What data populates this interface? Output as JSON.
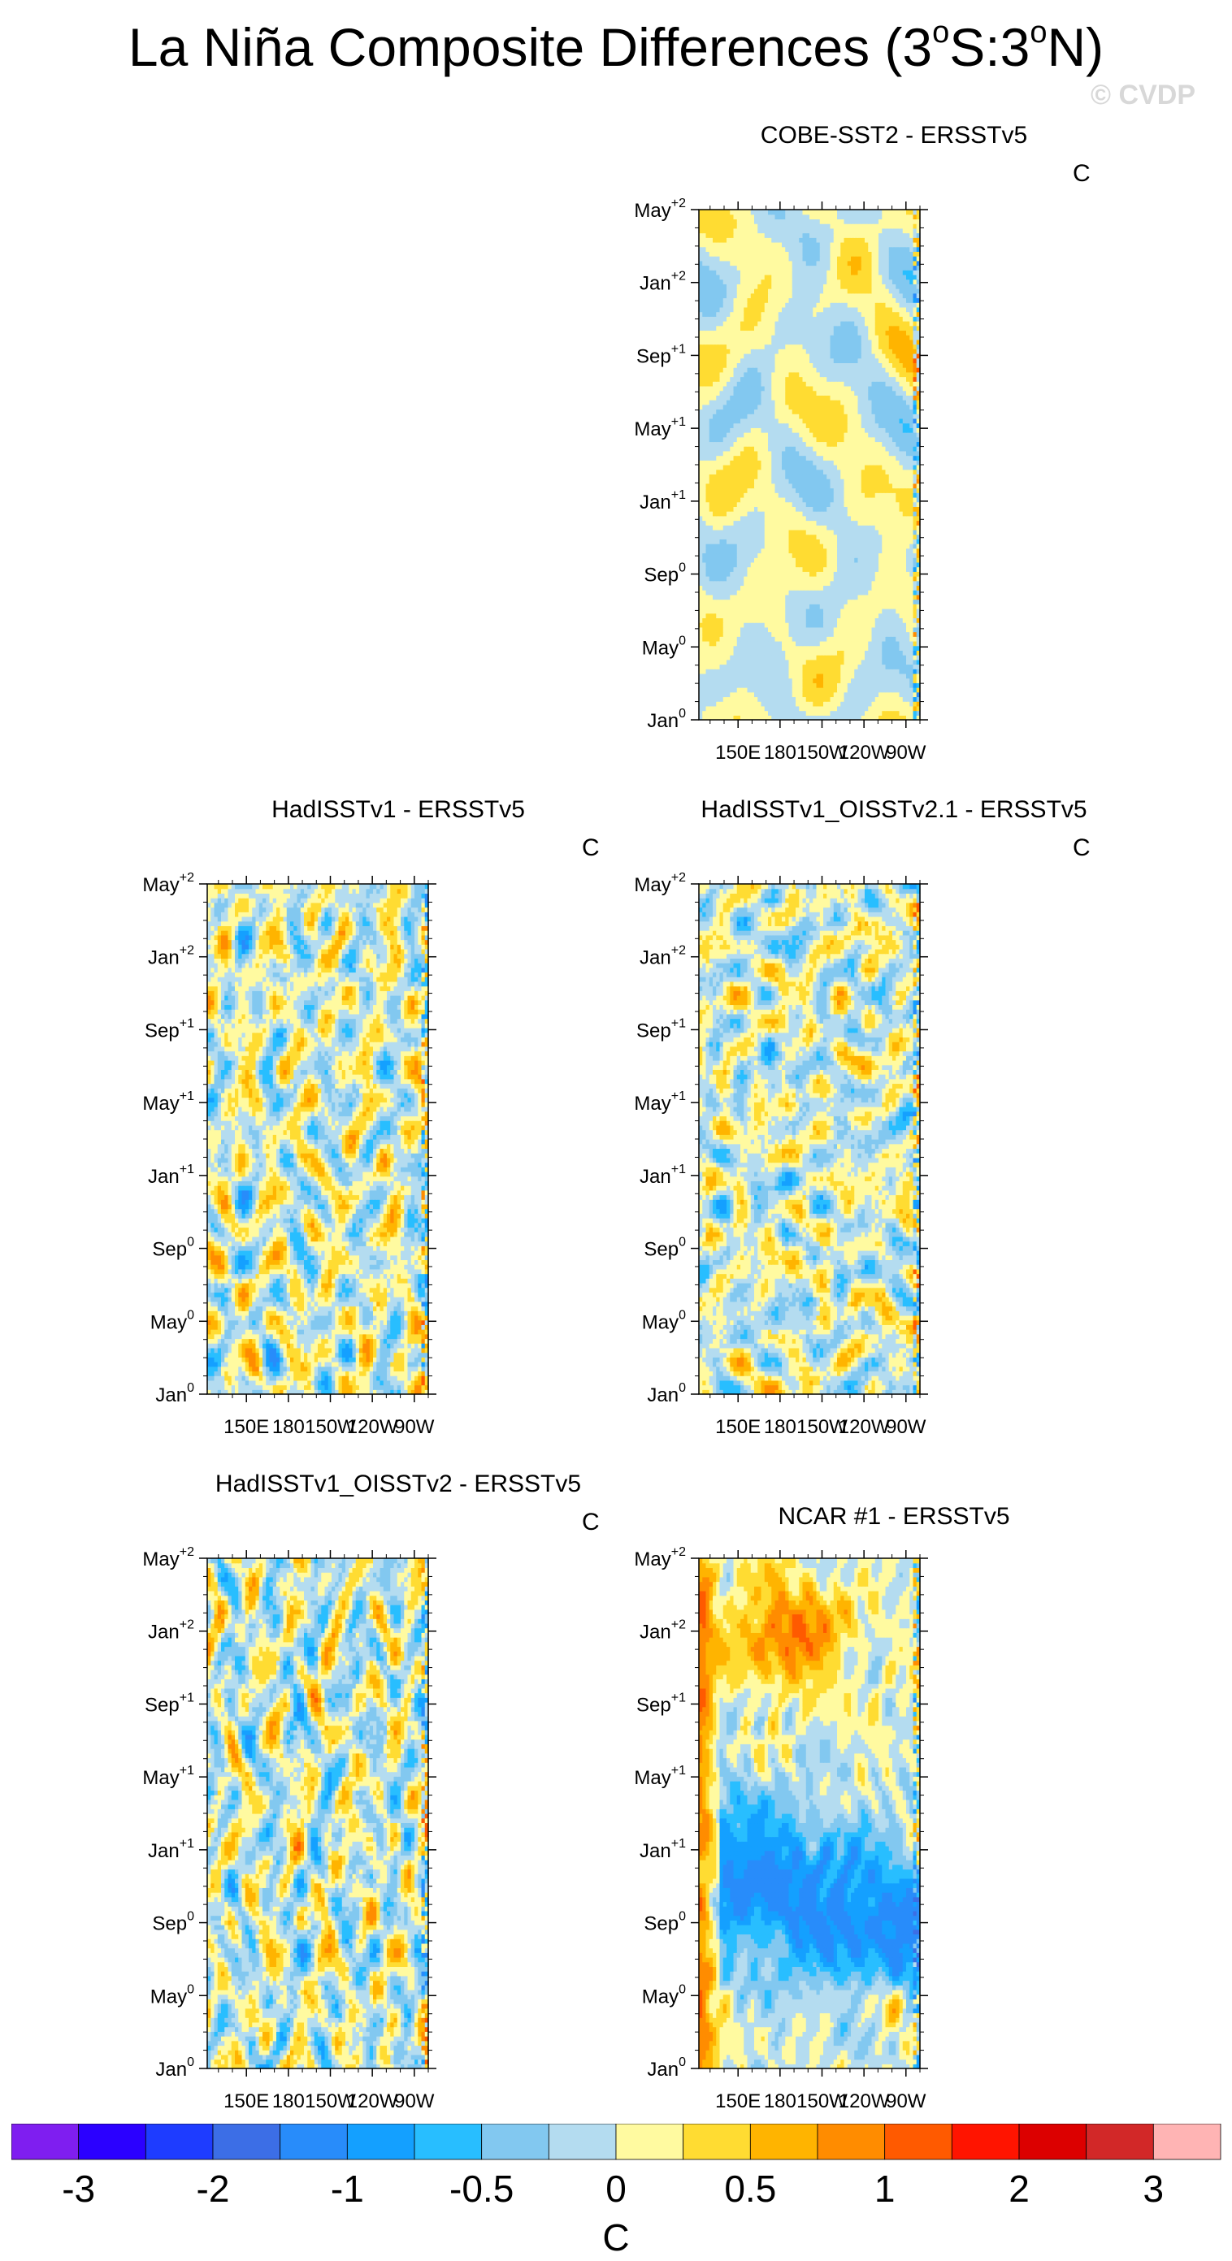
{
  "title": {
    "main": "La Niña Composite Differences (3",
    "s1": "o",
    "mid": "S:3",
    "s2": "o",
    "end": "N)"
  },
  "watermark": "© CVDP",
  "chart_data": [
    {
      "type": "heatmap",
      "title": "COBE-SST2 - ERSSTv5",
      "units": "C",
      "x_ticks": [
        "150E",
        "180",
        "150W",
        "120W",
        "90W"
      ],
      "y_ticks": [
        [
          "Jan",
          "0"
        ],
        [
          "May",
          "0"
        ],
        [
          "Sep",
          "0"
        ],
        [
          "Jan",
          "+1"
        ],
        [
          "May",
          "+1"
        ],
        [
          "Sep",
          "+1"
        ],
        [
          "Jan",
          "+2"
        ],
        [
          "May",
          "+2"
        ]
      ],
      "seed": 11,
      "bias": 0.02,
      "pattern": "weak"
    },
    {
      "type": "heatmap",
      "title": "HadISSTv1 - ERSSTv5",
      "units": "C",
      "x_ticks": [
        "150E",
        "180",
        "150W",
        "120W",
        "90W"
      ],
      "y_ticks": [
        [
          "Jan",
          "0"
        ],
        [
          "May",
          "0"
        ],
        [
          "Sep",
          "0"
        ],
        [
          "Jan",
          "+1"
        ],
        [
          "May",
          "+1"
        ],
        [
          "Sep",
          "+1"
        ],
        [
          "Jan",
          "+2"
        ],
        [
          "May",
          "+2"
        ]
      ],
      "seed": 23,
      "bias": 0.0,
      "pattern": "noisy"
    },
    {
      "type": "heatmap",
      "title": "HadISSTv1_OISSTv2.1 - ERSSTv5",
      "units": "C",
      "x_ticks": [
        "150E",
        "180",
        "150W",
        "120W",
        "90W"
      ],
      "y_ticks": [
        [
          "Jan",
          "0"
        ],
        [
          "May",
          "0"
        ],
        [
          "Sep",
          "0"
        ],
        [
          "Jan",
          "+1"
        ],
        [
          "May",
          "+1"
        ],
        [
          "Sep",
          "+1"
        ],
        [
          "Jan",
          "+2"
        ],
        [
          "May",
          "+2"
        ]
      ],
      "seed": 37,
      "bias": -0.02,
      "pattern": "noisy"
    },
    {
      "type": "heatmap",
      "title": "HadISSTv1_OISSTv2 - ERSSTv5",
      "units": "C",
      "x_ticks": [
        "150E",
        "180",
        "150W",
        "120W",
        "90W"
      ],
      "y_ticks": [
        [
          "Jan",
          "0"
        ],
        [
          "May",
          "0"
        ],
        [
          "Sep",
          "0"
        ],
        [
          "Jan",
          "+1"
        ],
        [
          "May",
          "+1"
        ],
        [
          "Sep",
          "+1"
        ],
        [
          "Jan",
          "+2"
        ],
        [
          "May",
          "+2"
        ]
      ],
      "seed": 51,
      "bias": -0.04,
      "pattern": "noisy"
    },
    {
      "type": "heatmap",
      "title": "NCAR #1 - ERSSTv5",
      "units": "C",
      "x_ticks": [
        "150E",
        "180",
        "150W",
        "120W",
        "90W"
      ],
      "y_ticks": [
        [
          "Jan",
          "0"
        ],
        [
          "May",
          "0"
        ],
        [
          "Sep",
          "0"
        ],
        [
          "Jan",
          "+1"
        ],
        [
          "May",
          "+1"
        ],
        [
          "Sep",
          "+1"
        ],
        [
          "Jan",
          "+2"
        ],
        [
          "May",
          "+2"
        ]
      ],
      "seed": 73,
      "bias": 0.0,
      "pattern": "ncar"
    }
  ],
  "colorbar": {
    "colors": [
      "#7f1ef0",
      "#2b00ff",
      "#1e3cff",
      "#3c6ee6",
      "#288cfa",
      "#14a0ff",
      "#28beff",
      "#82c8f0",
      "#b4dcf0",
      "#fffaa0",
      "#ffdc32",
      "#ffb400",
      "#ff8c00",
      "#ff5a00",
      "#ff1400",
      "#dc0000",
      "#d22828",
      "#ffb4b4"
    ],
    "levels": [
      -4,
      -3,
      -2.5,
      -2,
      -1.5,
      -1,
      -0.75,
      -0.5,
      -0.25,
      0,
      0.25,
      0.5,
      0.75,
      1,
      1.5,
      2,
      2.5,
      3,
      4
    ],
    "labels": [
      "-3",
      "-2",
      "-1",
      "-0.5",
      "0",
      "0.5",
      "1",
      "2",
      "3"
    ],
    "units": "C"
  }
}
